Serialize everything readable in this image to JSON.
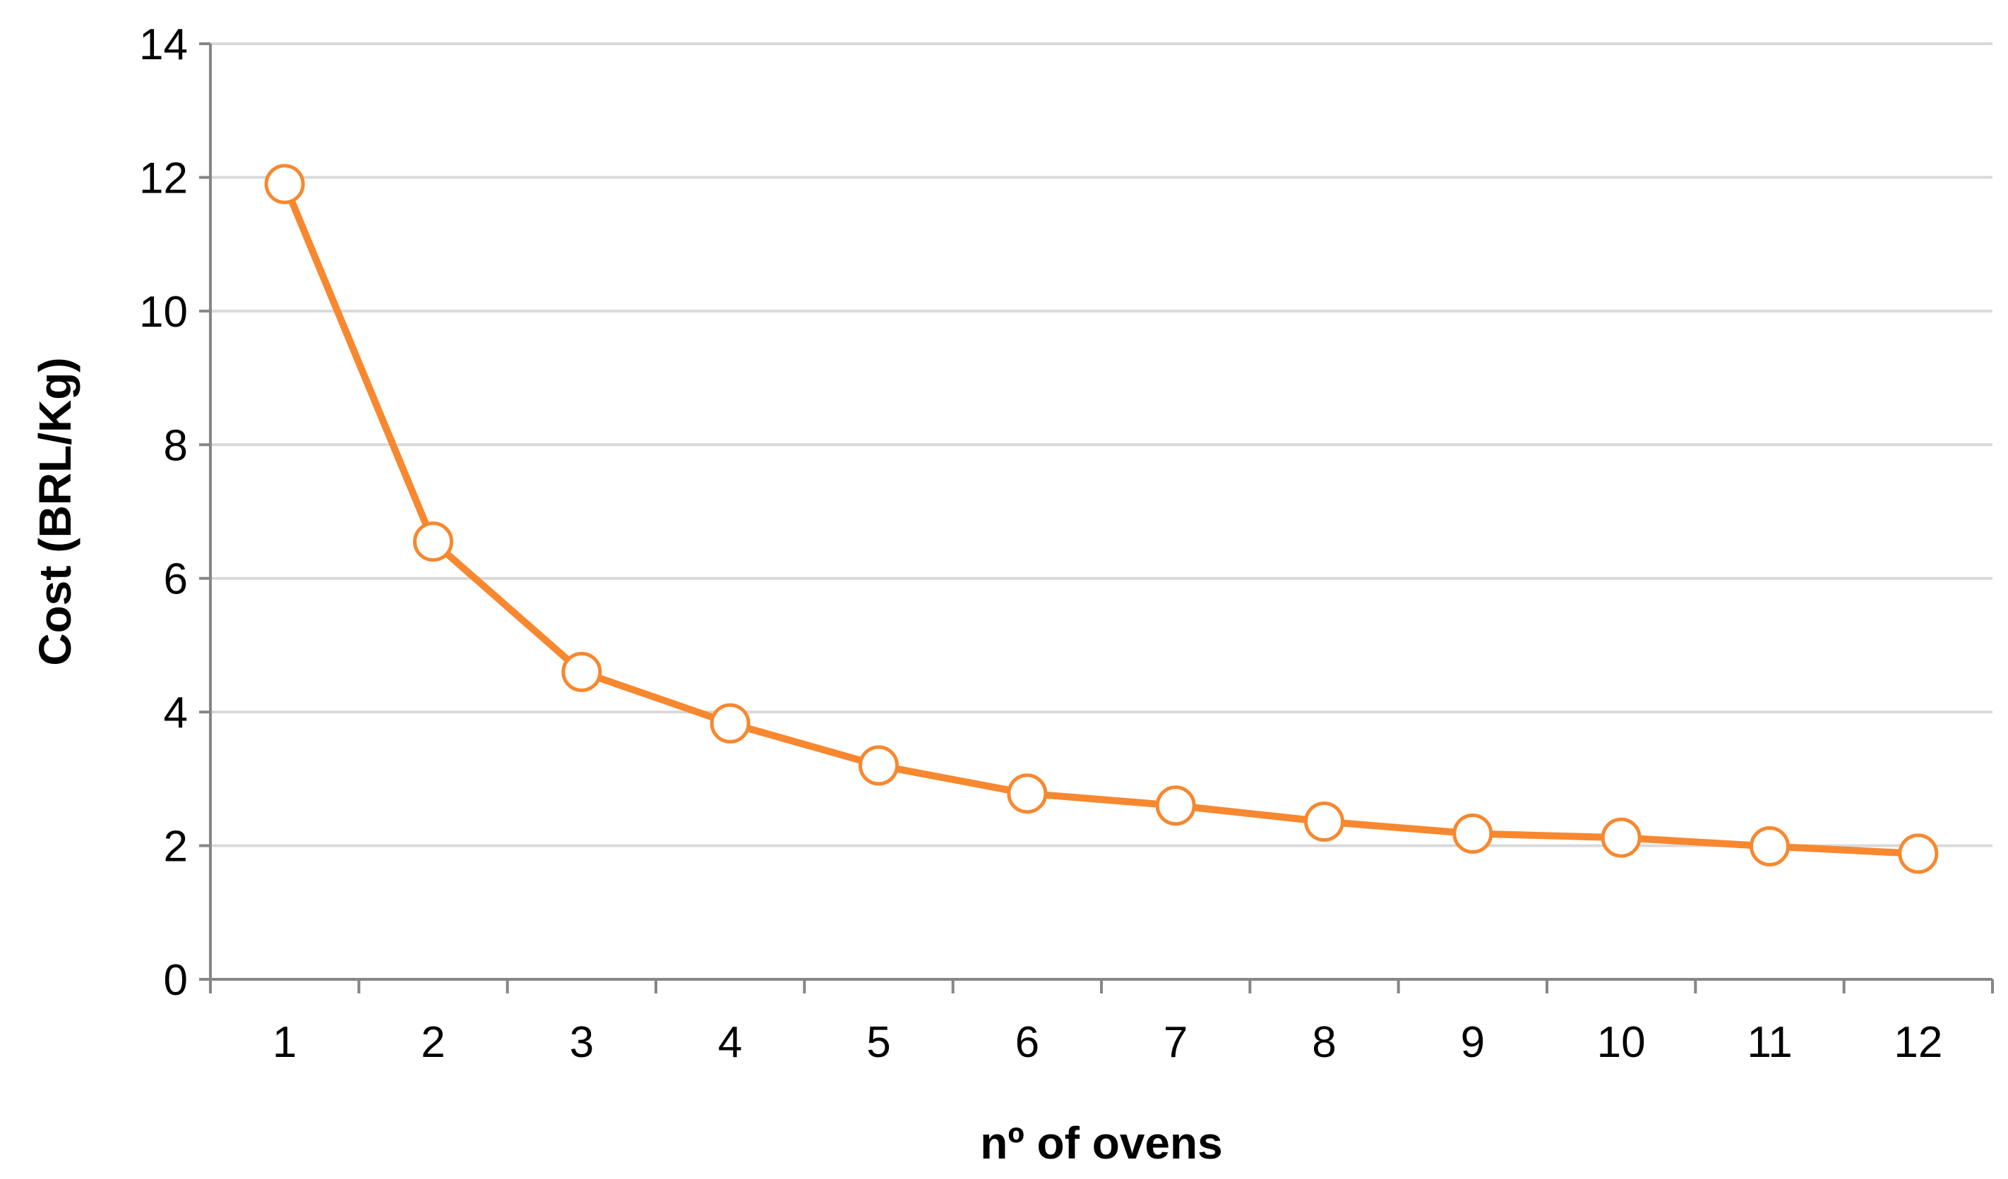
{
  "chart_data": {
    "type": "line",
    "title": "",
    "xlabel": "nº of ovens",
    "ylabel": "Cost (BRL/Kg)",
    "categories": [
      "1",
      "2",
      "3",
      "4",
      "5",
      "6",
      "7",
      "8",
      "9",
      "10",
      "11",
      "12"
    ],
    "series": [
      {
        "values": [
          11.9,
          6.55,
          4.6,
          3.83,
          3.2,
          2.78,
          2.6,
          2.36,
          2.18,
          2.12,
          1.99,
          1.88
        ]
      }
    ],
    "ylim": [
      0,
      14
    ],
    "yticks": [
      0,
      2,
      4,
      6,
      8,
      10,
      12,
      14
    ],
    "grid": true,
    "legend": "none",
    "colors": {
      "line": "#f7882f",
      "marker_fill": "#ffffff",
      "marker_stroke": "#f7882f",
      "grid": "#d9d9d9",
      "axis": "#868686"
    }
  }
}
